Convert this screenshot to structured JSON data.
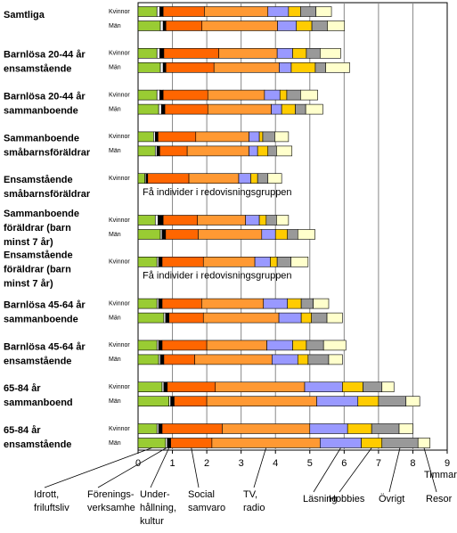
{
  "chart_data": {
    "type": "bar",
    "orientation": "horizontal",
    "stacked": true,
    "groups": [
      [
        "Samtliga"
      ],
      [
        "Barnlösa 20-44 år",
        "ensamstående"
      ],
      [
        "Barnlösa 20-44 år",
        "sammanboende"
      ],
      [
        "Sammanboende",
        "småbarnsföräldrar"
      ],
      [
        "Ensamstående",
        "småbarnsföräldrar"
      ],
      [
        "Sammanboende",
        "föräldrar (barn",
        "minst 7 år)"
      ],
      [
        "Ensamstående",
        "föräldrar (barn",
        "minst 7 år)"
      ],
      [
        "Barnlösa 45-64 år",
        "sammanboende"
      ],
      [
        "Barnlösa 45-64 år",
        "ensamstående"
      ],
      [
        "65-84 år",
        "sammanboend"
      ],
      [
        "65-84 år",
        "ensamstående"
      ]
    ],
    "categories": [
      "Kvinnor",
      "Män",
      "Kvinnor",
      "Män",
      "Kvinnor",
      "Män",
      "Kvinnor",
      "Män",
      "Kvinnor",
      null,
      "Kvinnor",
      "Män",
      "Kvinnor",
      null,
      "Kvinnor",
      "Män",
      "Kvinnor",
      "Män",
      "Kvinnor",
      "Män",
      "Kvinnor",
      "Män"
    ],
    "missing_note": "Få individer i redovisningsgruppen",
    "xlabel": "Timmar",
    "xlim": [
      0,
      9
    ],
    "xticks": [
      0,
      1,
      2,
      3,
      4,
      5,
      6,
      7,
      8,
      9
    ],
    "grid": true,
    "series": [
      {
        "name": [
          "Idrott,",
          "friluftsliv"
        ],
        "color": "#99cc33",
        "values": [
          0.55,
          0.65,
          0.55,
          0.65,
          0.55,
          0.6,
          0.45,
          0.5,
          0.2,
          null,
          0.5,
          0.65,
          0.55,
          null,
          0.55,
          0.75,
          0.55,
          0.6,
          0.7,
          0.9,
          0.55,
          0.8
        ]
      },
      {
        "name": [
          "Förenings-",
          "verksamhe"
        ],
        "color": "#ffffff",
        "values": [
          0.08,
          0.08,
          0.08,
          0.08,
          0.08,
          0.08,
          0.05,
          0.05,
          0.03,
          null,
          0.08,
          0.05,
          0.05,
          null,
          0.05,
          0.05,
          0.05,
          0.05,
          0.05,
          0.05,
          0.05,
          0.05
        ]
      },
      {
        "name": [
          "Under-",
          "hållning,",
          "kultur"
        ],
        "color": "#000000",
        "values": [
          0.1,
          0.08,
          0.12,
          0.08,
          0.1,
          0.1,
          0.08,
          0.08,
          0.05,
          null,
          0.15,
          0.1,
          0.1,
          null,
          0.1,
          0.1,
          0.1,
          0.1,
          0.1,
          0.1,
          0.1,
          0.1
        ]
      },
      {
        "name": [
          "Social",
          "samvaro"
        ],
        "color": "#ff6600",
        "values": [
          1.2,
          1.05,
          1.6,
          1.4,
          1.3,
          1.25,
          1.1,
          0.8,
          1.2,
          null,
          1.0,
          0.95,
          1.2,
          null,
          1.15,
          1.0,
          1.3,
          0.9,
          1.4,
          0.95,
          1.75,
          1.2
        ]
      },
      {
        "name": [
          "TV,",
          "radio"
        ],
        "color": "#ff9933",
        "values": [
          1.85,
          2.2,
          1.7,
          1.9,
          1.65,
          1.85,
          1.55,
          1.8,
          1.45,
          null,
          1.4,
          1.85,
          1.5,
          null,
          1.8,
          2.2,
          1.75,
          2.25,
          2.6,
          3.2,
          2.55,
          3.15
        ]
      },
      {
        "name": [
          "Läsning"
        ],
        "color": "#9999ff",
        "values": [
          0.6,
          0.55,
          0.45,
          0.35,
          0.45,
          0.3,
          0.3,
          0.25,
          0.35,
          null,
          0.4,
          0.4,
          0.45,
          null,
          0.7,
          0.65,
          0.75,
          0.75,
          1.1,
          1.2,
          1.1,
          1.2
        ]
      },
      {
        "name": [
          "Hobbies"
        ],
        "color": "#ffcc00",
        "values": [
          0.35,
          0.45,
          0.4,
          0.7,
          0.2,
          0.4,
          0.1,
          0.3,
          0.2,
          null,
          0.2,
          0.35,
          0.2,
          null,
          0.4,
          0.3,
          0.4,
          0.3,
          0.6,
          0.6,
          0.7,
          0.6
        ]
      },
      {
        "name": [
          "Övrigt"
        ],
        "color": "#999999",
        "values": [
          0.45,
          0.45,
          0.4,
          0.3,
          0.4,
          0.3,
          0.35,
          0.25,
          0.3,
          null,
          0.3,
          0.3,
          0.4,
          null,
          0.35,
          0.45,
          0.5,
          0.6,
          0.55,
          0.8,
          0.8,
          1.05
        ]
      },
      {
        "name": [
          "Resor"
        ],
        "color": "#ffffcc",
        "values": [
          0.45,
          0.5,
          0.6,
          0.7,
          0.5,
          0.5,
          0.4,
          0.45,
          0.4,
          null,
          0.35,
          0.5,
          0.5,
          null,
          0.45,
          0.45,
          0.65,
          0.4,
          0.35,
          0.4,
          0.4,
          0.35
        ]
      }
    ]
  }
}
